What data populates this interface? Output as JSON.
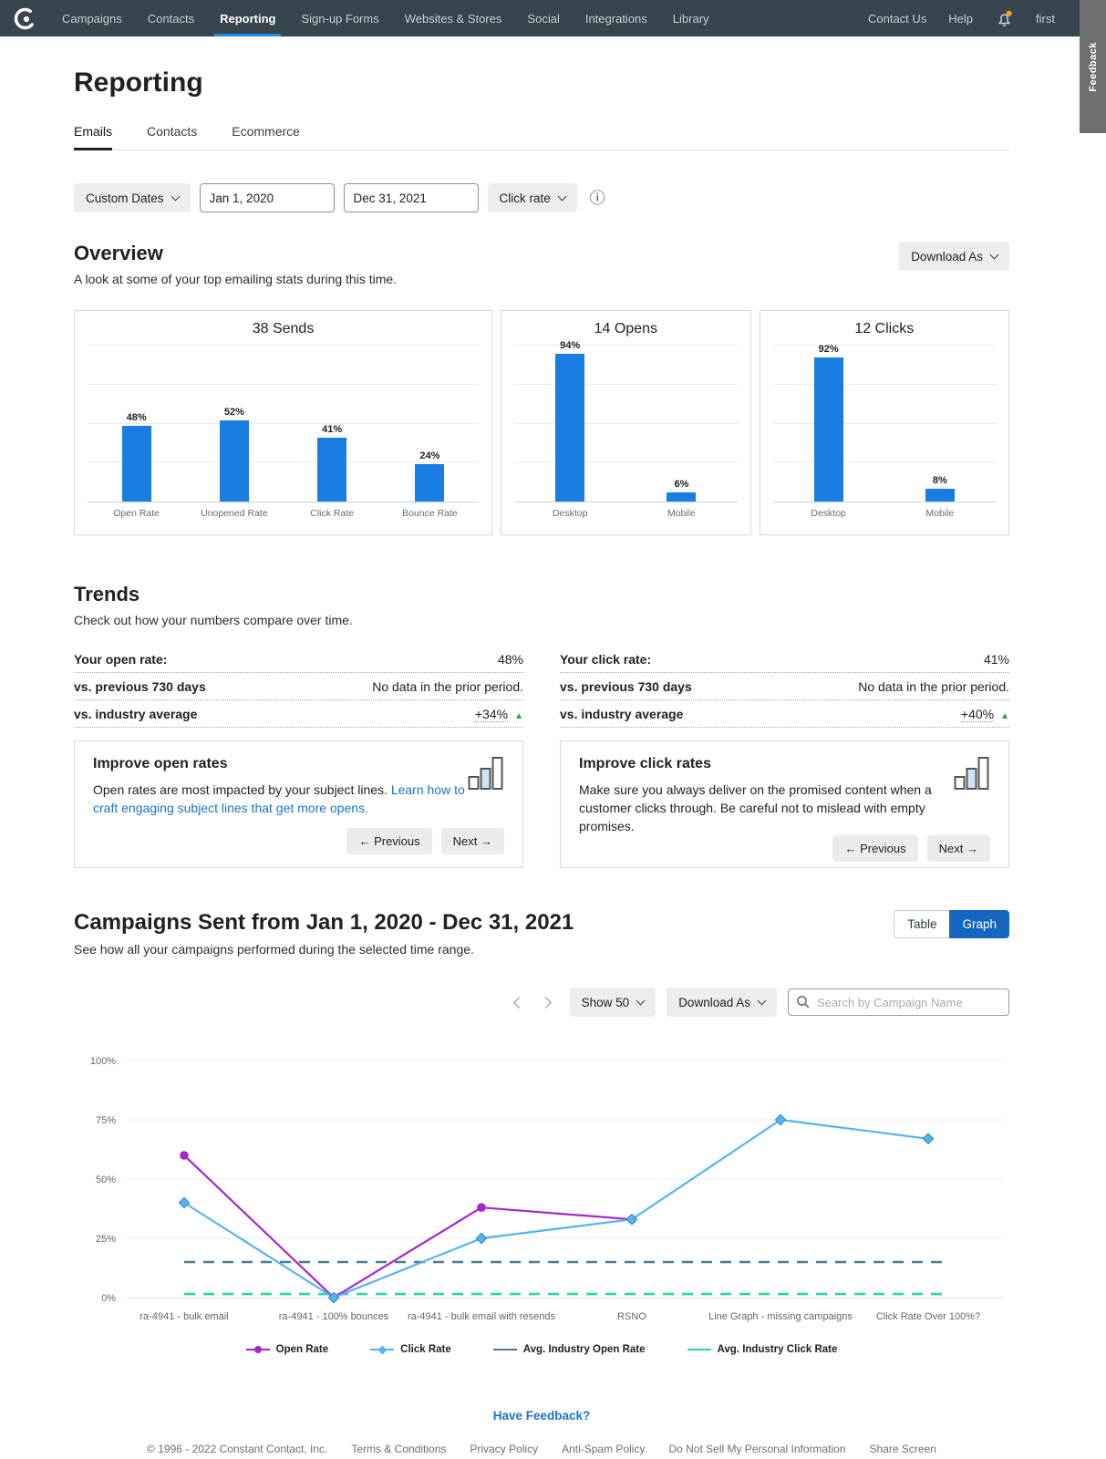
{
  "nav": {
    "items": [
      "Campaigns",
      "Contacts",
      "Reporting",
      "Sign-up Forms",
      "Websites & Stores",
      "Social",
      "Integrations",
      "Library"
    ],
    "active": "Reporting",
    "contact_us": "Contact Us",
    "help": "Help",
    "user": "first",
    "feedback_tab": "Feedback"
  },
  "page": {
    "title": "Reporting"
  },
  "tabs": {
    "items": [
      "Emails",
      "Contacts",
      "Ecommerce"
    ],
    "active": "Emails"
  },
  "filters": {
    "date_range_label": "Custom Dates",
    "start_date": "Jan 1, 2020",
    "end_date": "Dec 31, 2021",
    "metric_label": "Click rate"
  },
  "icons": {
    "info": "ⓘ",
    "up_triangle": "▲"
  },
  "overview": {
    "title": "Overview",
    "subtitle": "A look at some of your top emailing stats during this time.",
    "download_label": "Download As"
  },
  "trends": {
    "title": "Trends",
    "subtitle": "Check out how your numbers compare over time.",
    "open": {
      "metric_label": "Your open rate:",
      "metric_value": "48%",
      "prev_label": "vs. previous 730 days",
      "prev_value": "No data in the prior period.",
      "industry_label": "vs. industry average",
      "industry_value": "+34%",
      "card_title": "Improve open rates",
      "card_text": "Open rates are most impacted by your subject lines. ",
      "card_link": "Learn how to craft engaging subject lines that get more opens.",
      "prev_btn": "← Previous",
      "next_btn": "Next →"
    },
    "click": {
      "metric_label": "Your click rate:",
      "metric_value": "41%",
      "prev_label": "vs. previous 730 days",
      "prev_value": "No data in the prior period.",
      "industry_label": "vs. industry average",
      "industry_value": "+40%",
      "card_title": "Improve click rates",
      "card_text": "Make sure you always deliver on the promised content when a customer clicks through. Be careful not to mislead with empty promises.",
      "card_link": "",
      "prev_btn": "← Previous",
      "next_btn": "Next →"
    }
  },
  "campaigns": {
    "title": "Campaigns Sent from Jan 1, 2020 - Dec 31, 2021",
    "subtitle": "See how all your campaigns performed during the selected time range.",
    "table_label": "Table",
    "graph_label": "Graph",
    "show_label": "Show 50",
    "download_label": "Download As",
    "search_placeholder": "Search by Campaign Name"
  },
  "colors": {
    "bar": "#1a7de2",
    "nav_bg": "#36454e",
    "active_tab_blue": "#1e8ee8",
    "graph_toggle_blue": "#1665c0",
    "link_blue": "#1a73c9",
    "positive_green": "#3d9a44",
    "notification_orange": "#f7a21b"
  },
  "chart_data": [
    {
      "type": "bar",
      "title": "38 Sends",
      "categories": [
        "Open Rate",
        "Unopened Rate",
        "Click Rate",
        "Bounce Rate"
      ],
      "values": [
        48,
        52,
        41,
        24
      ],
      "ylim": [
        0,
        100
      ],
      "unit": "%",
      "grid": true
    },
    {
      "type": "bar",
      "title": "14 Opens",
      "categories": [
        "Desktop",
        "Mobile"
      ],
      "values": [
        94,
        6
      ],
      "ylim": [
        0,
        100
      ],
      "unit": "%",
      "grid": true
    },
    {
      "type": "bar",
      "title": "12 Clicks",
      "categories": [
        "Desktop",
        "Mobile"
      ],
      "values": [
        92,
        8
      ],
      "ylim": [
        0,
        100
      ],
      "unit": "%",
      "grid": true
    },
    {
      "type": "line",
      "title": "Campaigns Sent from Jan 1, 2020 - Dec 31, 2021",
      "categories": [
        "ra-4941 - bulk email",
        "ra-4941 - 100% bounces",
        "ra-4941 - bulk email with resends",
        "RSNO",
        "Line Graph - missing campaigns",
        "Click Rate Over 100%?"
      ],
      "series": [
        {
          "name": "Avg. Industry Open Rate",
          "color": "#4d7a8f",
          "dashed": true,
          "marker": "none",
          "values": [
            15,
            15,
            15,
            15,
            15,
            15
          ]
        },
        {
          "name": "Avg. Industry Click Rate",
          "color": "#2ed3ae",
          "dashed": true,
          "marker": "none",
          "values": [
            1.5,
            1.5,
            1.5,
            1.5,
            1.5,
            1.5
          ]
        },
        {
          "name": "Open Rate",
          "color": "#a428c8",
          "dashed": false,
          "marker": "circle",
          "values": [
            60,
            0,
            38,
            33,
            null,
            null
          ]
        },
        {
          "name": "Click Rate",
          "color": "#56b3f0",
          "dashed": false,
          "marker": "diamond",
          "values": [
            40,
            0,
            25,
            33,
            75,
            67
          ]
        }
      ],
      "legend_order": [
        2,
        3,
        0,
        1
      ],
      "yticks": [
        0,
        25,
        50,
        75,
        100
      ],
      "ylim": [
        0,
        100
      ],
      "grid": true,
      "legend_position": "bottom"
    }
  ],
  "footer": {
    "feedback": "Have Feedback?",
    "copyright": "© 1996 - 2022 Constant Contact, Inc.",
    "links": [
      "Terms & Conditions",
      "Privacy Policy",
      "Anti-Spam Policy",
      "Do Not Sell My Personal Information",
      "Share Screen"
    ]
  }
}
